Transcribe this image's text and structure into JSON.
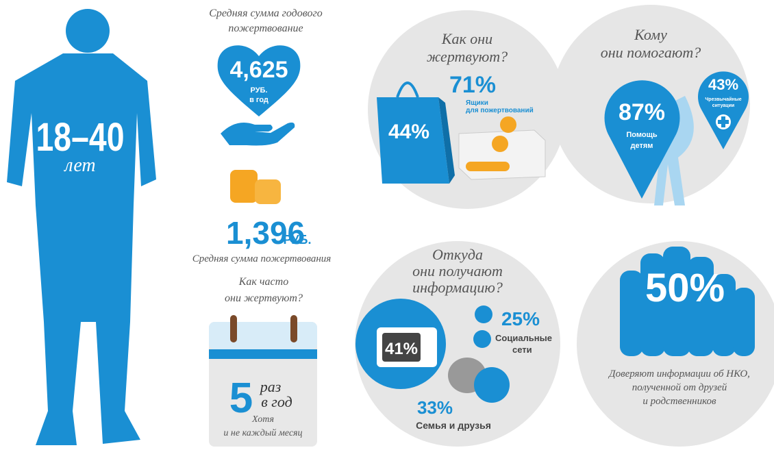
{
  "person": {
    "age": "18–40",
    "age_unit": "лет"
  },
  "annual": {
    "title": [
      "Средняя сумма годового",
      "пожертвование"
    ],
    "amount": "4,625",
    "unit": [
      "РУБ.",
      "в год"
    ]
  },
  "average": {
    "amount": "1,396",
    "unit": "РУБ.",
    "caption": "Средняя сумма пожертвования"
  },
  "frequency": {
    "title": [
      "Как часто",
      "они жертвуют?"
    ],
    "count": "5",
    "unit": [
      "раз",
      "в год"
    ],
    "note": [
      "Хотя",
      "и не каждый месяц"
    ]
  },
  "how": {
    "title": [
      "Как они",
      "жертвуют?"
    ],
    "bag_share": "44%",
    "box_share": "71%",
    "box_label": [
      "Ящики",
      "для пожертвований"
    ]
  },
  "whom": {
    "title": [
      "Кому",
      "они помогают?"
    ],
    "children_share": "87%",
    "children_label": [
      "Помощь",
      "детям"
    ],
    "emergency_share": "43%",
    "emergency_label": [
      "Чрезвычайные",
      "ситуации"
    ]
  },
  "sources": {
    "title": [
      "Откуда",
      "они получают",
      "информацию?"
    ],
    "tv_share": "41%",
    "social_share": "25%",
    "social_label": [
      "Социальные",
      "сети"
    ],
    "family_share": "33%",
    "family_label": "Семья и друзья"
  },
  "trust": {
    "share": "50%",
    "caption": [
      "Доверяют информации об НКО,",
      "полученной от друзей",
      "и родственников"
    ]
  }
}
